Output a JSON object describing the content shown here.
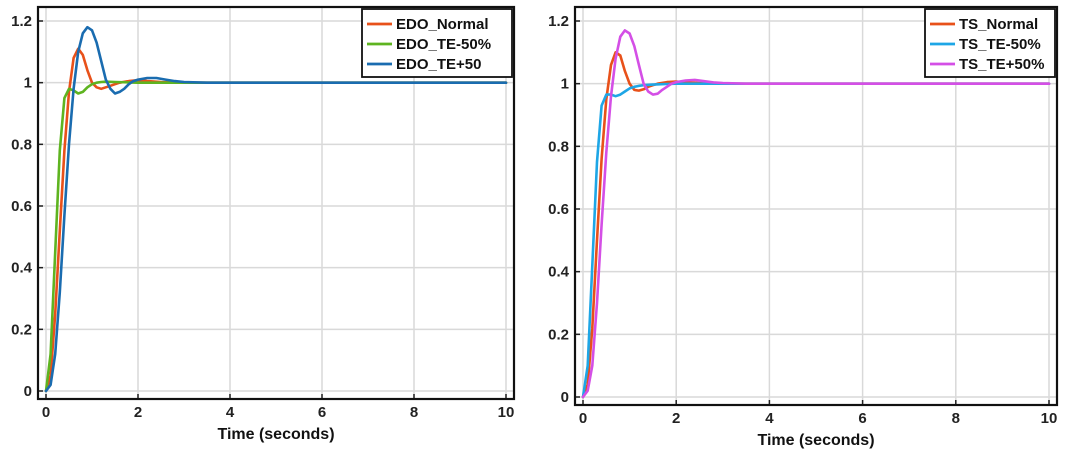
{
  "chart_data": [
    {
      "type": "line",
      "title": "",
      "xlabel": "Time (seconds)",
      "ylabel": "",
      "xlim": [
        0,
        10
      ],
      "ylim": [
        0,
        1.2
      ],
      "xticks": [
        0,
        2,
        4,
        6,
        8,
        10
      ],
      "xtick_labels": [
        "0",
        "2",
        "4",
        "6",
        "8",
        "10"
      ],
      "yticks": [
        0,
        0.2,
        0.4,
        0.6,
        0.8,
        1,
        1.2
      ],
      "ytick_labels": [
        "0",
        "0.2",
        "0.4",
        "0.6",
        "0.8",
        "1",
        "1.2"
      ],
      "grid": true,
      "legend_position": "top-right",
      "series": [
        {
          "name": "EDO_Normal",
          "color": "#e8511a",
          "x": [
            0,
            0.1,
            0.2,
            0.3,
            0.4,
            0.5,
            0.6,
            0.7,
            0.8,
            0.9,
            1.0,
            1.1,
            1.2,
            1.3,
            1.4,
            1.5,
            1.6,
            1.8,
            2.0,
            2.2,
            2.5,
            3.0,
            4.0,
            6.0,
            8.0,
            10.0
          ],
          "y": [
            0,
            0.05,
            0.25,
            0.52,
            0.78,
            0.97,
            1.08,
            1.11,
            1.09,
            1.04,
            1.0,
            0.985,
            0.98,
            0.985,
            0.99,
            0.995,
            1.0,
            1.005,
            1.008,
            1.005,
            1.002,
            1.0,
            1.0,
            1.0,
            1.0,
            1.0
          ]
        },
        {
          "name": "EDO_TE-50%",
          "color": "#5eb420",
          "x": [
            0,
            0.1,
            0.2,
            0.3,
            0.4,
            0.5,
            0.6,
            0.7,
            0.8,
            0.9,
            1.0,
            1.1,
            1.2,
            1.3,
            1.5,
            1.8,
            2.0,
            2.5,
            3.0,
            4.0,
            6.0,
            8.0,
            10.0
          ],
          "y": [
            0,
            0.12,
            0.45,
            0.78,
            0.95,
            0.98,
            0.975,
            0.965,
            0.97,
            0.985,
            0.995,
            1.0,
            1.002,
            1.003,
            1.002,
            1.001,
            1.0,
            1.0,
            1.0,
            1.0,
            1.0,
            1.0,
            1.0
          ]
        },
        {
          "name": "EDO_TE+50",
          "color": "#1a6cb0",
          "x": [
            0,
            0.1,
            0.2,
            0.3,
            0.4,
            0.5,
            0.6,
            0.7,
            0.8,
            0.9,
            1.0,
            1.1,
            1.2,
            1.3,
            1.4,
            1.5,
            1.6,
            1.7,
            1.8,
            1.9,
            2.0,
            2.2,
            2.4,
            2.6,
            2.8,
            3.0,
            3.5,
            4.0,
            6.0,
            8.0,
            10.0
          ],
          "y": [
            0,
            0.02,
            0.12,
            0.32,
            0.57,
            0.8,
            0.98,
            1.1,
            1.16,
            1.18,
            1.17,
            1.13,
            1.07,
            1.01,
            0.98,
            0.965,
            0.97,
            0.98,
            0.995,
            1.005,
            1.01,
            1.015,
            1.015,
            1.01,
            1.005,
            1.002,
            1.0,
            1.0,
            1.0,
            1.0,
            1.0
          ]
        }
      ]
    },
    {
      "type": "line",
      "title": "",
      "xlabel": "Time (seconds)",
      "ylabel": "",
      "xlim": [
        0,
        10
      ],
      "ylim": [
        0,
        1.2
      ],
      "xticks": [
        0,
        2,
        4,
        6,
        8,
        10
      ],
      "xtick_labels": [
        "0",
        "2",
        "4",
        "6",
        "8",
        "10"
      ],
      "yticks": [
        0,
        0.2,
        0.4,
        0.6,
        0.8,
        1,
        1.2
      ],
      "ytick_labels": [
        "0",
        "0.2",
        "0.4",
        "0.6",
        "0.8",
        "1",
        "1.2"
      ],
      "grid": true,
      "legend_position": "top-right",
      "series": [
        {
          "name": "TS_Normal",
          "color": "#e8511a",
          "x": [
            0,
            0.1,
            0.2,
            0.3,
            0.4,
            0.5,
            0.6,
            0.7,
            0.8,
            0.9,
            1.0,
            1.1,
            1.2,
            1.3,
            1.4,
            1.5,
            1.6,
            1.8,
            2.0,
            2.2,
            2.5,
            3.0,
            4.0,
            6.0,
            8.0,
            10.0
          ],
          "y": [
            0,
            0.04,
            0.22,
            0.5,
            0.76,
            0.95,
            1.06,
            1.1,
            1.09,
            1.04,
            1.0,
            0.98,
            0.978,
            0.982,
            0.99,
            0.995,
            1.0,
            1.005,
            1.007,
            1.004,
            1.002,
            1.0,
            1.0,
            1.0,
            1.0,
            1.0
          ]
        },
        {
          "name": "TS_TE-50%",
          "color": "#1ea6e6",
          "x": [
            0,
            0.1,
            0.2,
            0.3,
            0.4,
            0.5,
            0.6,
            0.7,
            0.8,
            0.9,
            1.0,
            1.1,
            1.2,
            1.3,
            1.5,
            1.8,
            2.0,
            2.5,
            3.0,
            4.0,
            6.0,
            8.0,
            10.0
          ],
          "y": [
            0,
            0.1,
            0.42,
            0.75,
            0.93,
            0.965,
            0.965,
            0.96,
            0.965,
            0.975,
            0.985,
            0.99,
            0.993,
            0.995,
            0.997,
            0.999,
            1.0,
            1.0,
            1.0,
            1.0,
            1.0,
            1.0,
            1.0
          ]
        },
        {
          "name": "TS_TE+50%",
          "color": "#d44fe6",
          "x": [
            0,
            0.1,
            0.2,
            0.3,
            0.4,
            0.5,
            0.6,
            0.7,
            0.8,
            0.9,
            1.0,
            1.1,
            1.2,
            1.3,
            1.4,
            1.5,
            1.6,
            1.7,
            1.8,
            1.9,
            2.0,
            2.2,
            2.4,
            2.6,
            2.8,
            3.0,
            3.5,
            4.0,
            6.0,
            8.0,
            10.0
          ],
          "y": [
            0,
            0.02,
            0.1,
            0.3,
            0.55,
            0.78,
            0.96,
            1.08,
            1.15,
            1.17,
            1.16,
            1.12,
            1.06,
            1.0,
            0.975,
            0.965,
            0.968,
            0.98,
            0.99,
            1.0,
            1.005,
            1.01,
            1.012,
            1.008,
            1.004,
            1.002,
            1.0,
            1.0,
            1.0,
            1.0,
            1.0
          ]
        }
      ]
    }
  ]
}
